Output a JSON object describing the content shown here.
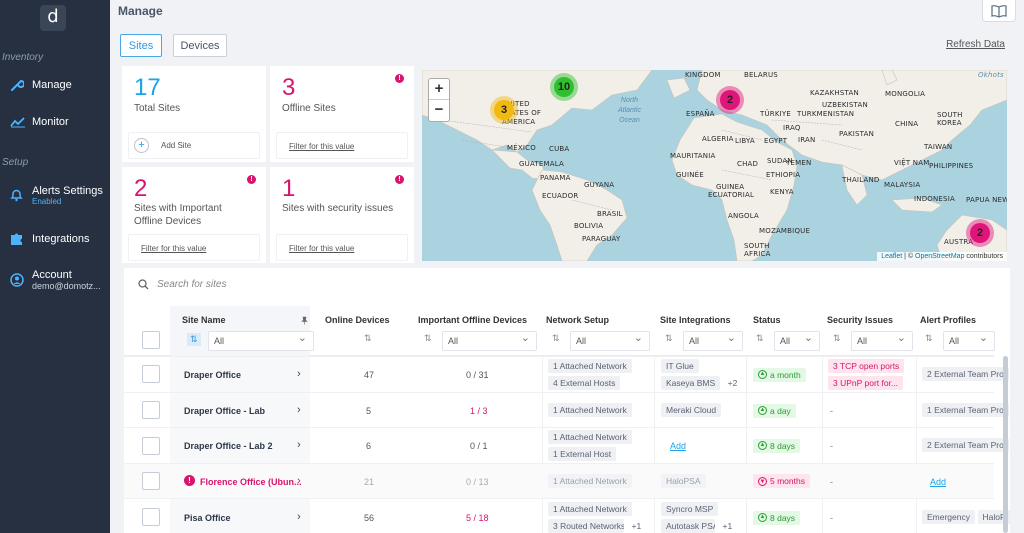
{
  "sidebar": {
    "logo": "d",
    "section_inventory": "Inventory",
    "section_setup": "Setup",
    "items": [
      {
        "label": "Manage"
      },
      {
        "label": "Monitor"
      },
      {
        "label": "Alerts Settings",
        "sub": "Enabled"
      },
      {
        "label": "Integrations"
      },
      {
        "label": "Account",
        "sub": "demo@domotz..."
      }
    ]
  },
  "header": {
    "title": "Manage",
    "tabs": [
      "Sites",
      "Devices"
    ],
    "refresh": "Refresh Data"
  },
  "summary": {
    "total": {
      "value": "17",
      "label": "Total Sites",
      "action": "Add Site"
    },
    "offline": {
      "value": "3",
      "label": "Offline Sites",
      "link": "Filter for this value"
    },
    "important": {
      "value": "2",
      "label": "Sites with Important Offline Devices",
      "link": "Filter for this value"
    },
    "security": {
      "value": "1",
      "label": "Sites with security issues",
      "link": "Filter for this value"
    }
  },
  "map": {
    "zoom_in": "+",
    "zoom_out": "−",
    "labels": [
      "KINGDOM",
      "BELARUS",
      "KAZAKHSTAN",
      "MONGOLIA",
      "Okhots",
      "UNITED",
      "STATES OF",
      "AMERICA",
      "ESPAÑA",
      "TÜRKIYE",
      "TURKMENISTAN",
      "UZBEKISTAN",
      "SOUTH",
      "KOREA",
      "IRAQ",
      "CHINA",
      "MÉXICO",
      "CUBA",
      "ALGERIA",
      "LIBYA",
      "EGYPT",
      "IRAN",
      "PAKISTAN",
      "TAIWAN",
      "GUATEMALA",
      "MAURITANIA",
      "VIỆT NAM",
      "PANAMA",
      "GUYANA",
      "CHAD",
      "YEMEN",
      "PHILIPPINES",
      "SUDAN",
      "ETHIOPIA",
      "THAILAND",
      "GUINÉE",
      "ECUADOR",
      "GUINEA",
      "ECUATORIAL",
      "KENYA",
      "MALAYSIA",
      "BRASIL",
      "ANGOLA",
      "INDONESIA",
      "PAPUA NEW",
      "BOLIVIA",
      "PARAGUAY",
      "MOZAMBIQUE",
      "SOUTH",
      "AFRICA",
      "AUSTRA",
      "North",
      "Atlantic",
      "Ocean"
    ],
    "clusters": [
      {
        "count": "10",
        "color": "#2fbf2f"
      },
      {
        "count": "3",
        "color": "#f2b90f"
      },
      {
        "count": "2",
        "color": "#e0157a"
      },
      {
        "count": "2",
        "color": "#e0157a"
      }
    ],
    "attribution_leaflet": "Leaflet",
    "attribution_sep": " | © ",
    "attribution_osm": "OpenStreetMap",
    "attribution_end": " contributors"
  },
  "table": {
    "search_placeholder": "Search for sites",
    "columns": [
      "Site Name",
      "Online Devices",
      "Important Offline Devices",
      "Network Setup",
      "Site Integrations",
      "Status",
      "Security Issues",
      "Alert Profiles"
    ],
    "filter_all": "All",
    "rows": [
      {
        "name": "Draper Office",
        "online": "47",
        "important": "0 / 31",
        "network": [
          "1 Attached Network",
          "4 External Hosts"
        ],
        "integrations": [
          "IT Glue",
          "Kaseya BMS"
        ],
        "integ_more": "+2",
        "status": "a month",
        "status_type": "ok",
        "security": [
          "3 TCP open ports",
          "3 UPnP port for..."
        ],
        "alerts": "2 External Team Pro"
      },
      {
        "name": "Draper Office - Lab",
        "online": "5",
        "important": "1 / 3",
        "network": [
          "1 Attached Network"
        ],
        "integrations": [
          "Meraki Cloud"
        ],
        "status": "a day",
        "status_type": "ok",
        "security_dash": "-",
        "alerts": "1 External Team Pro"
      },
      {
        "name": "Draper Office - Lab 2",
        "online": "6",
        "important": "0 / 1",
        "network": [
          "1 Attached Network",
          "1 External Host"
        ],
        "integ_add": "Add",
        "status": "8 days",
        "status_type": "ok",
        "security_dash": "-",
        "alerts": "2 External Team Pro"
      },
      {
        "name": "Florence Office (Ubun...",
        "online": "21",
        "important": "0 / 13",
        "network": [
          "1 Attached Network"
        ],
        "integrations": [
          "HaloPSA"
        ],
        "status": "5 months",
        "status_type": "bad",
        "security_dash": "-",
        "alerts_add": "Add"
      },
      {
        "name": "Pisa Office",
        "online": "56",
        "important": "5 / 18",
        "network": [
          "1 Attached Network",
          "3 Routed Networks"
        ],
        "network_more": "+1",
        "integrations": [
          "Syncro MSP",
          "Autotask PSA"
        ],
        "integ_more": "+1",
        "status": "8 days",
        "status_type": "ok",
        "security_dash": "-",
        "alerts_chips": [
          "Emergency",
          "HaloP"
        ]
      }
    ]
  },
  "colors": {
    "accent": "#1aa3e8",
    "danger": "#d8146c",
    "sidebar": "#263040"
  }
}
